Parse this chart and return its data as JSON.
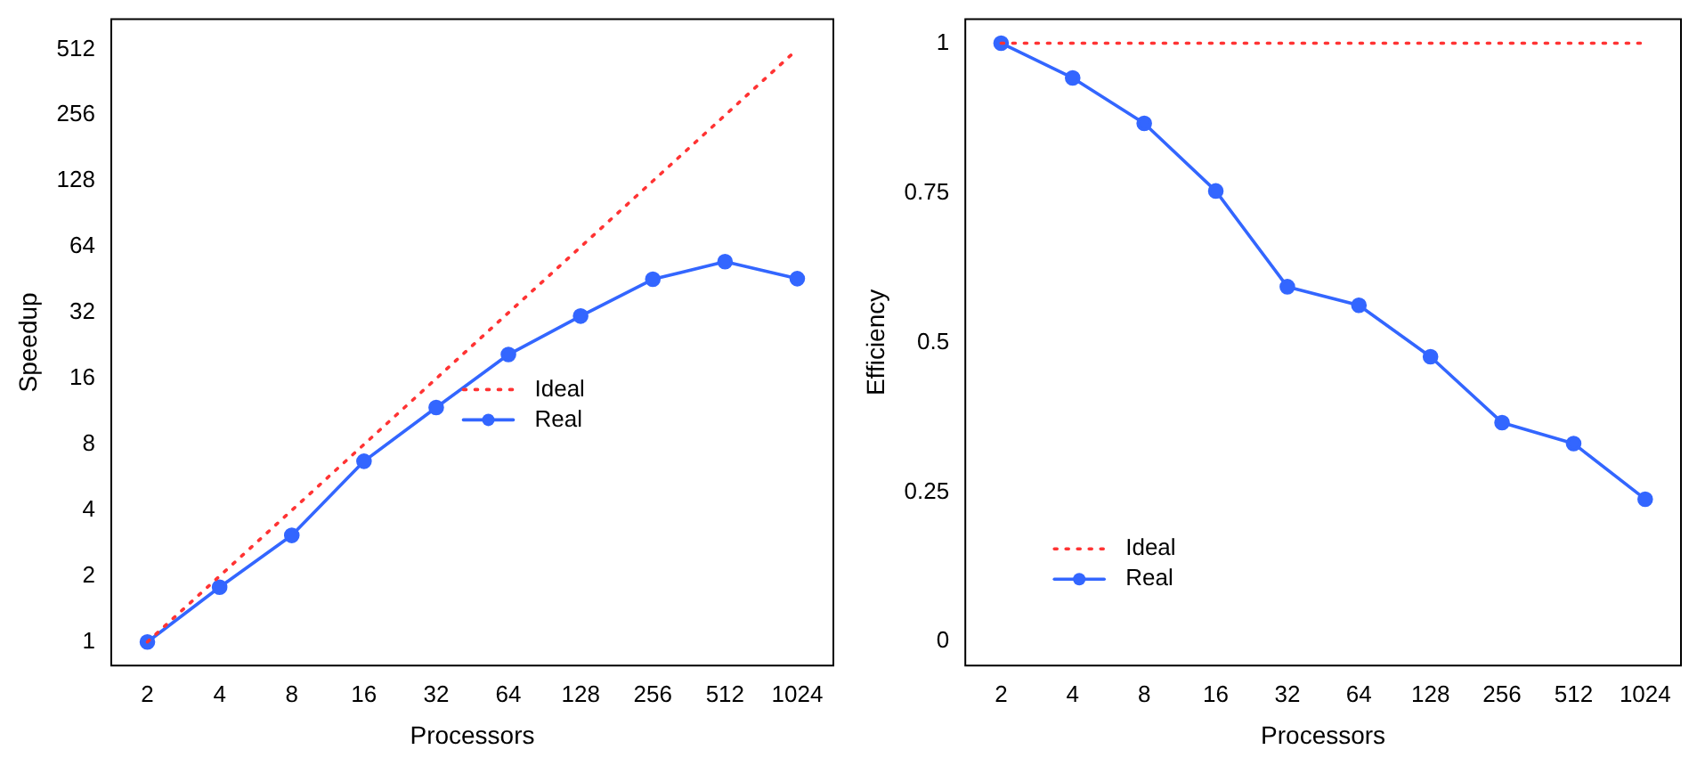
{
  "chart_data": [
    {
      "type": "line",
      "xlabel": "Processors",
      "ylabel": "Speedup",
      "categories": [
        "2",
        "4",
        "8",
        "16",
        "32",
        "64",
        "128",
        "256",
        "512",
        "1024"
      ],
      "log": "y",
      "ylim": [
        0.78,
        703
      ],
      "yticks": [
        1,
        2,
        4,
        8,
        16,
        32,
        64,
        128,
        256,
        512
      ],
      "legend": "center",
      "series": [
        {
          "name": "Ideal",
          "color": "#ff3333",
          "line_style": "dotted",
          "marker": "none",
          "values": [
            1,
            2,
            4,
            8,
            16,
            32,
            64,
            128,
            256,
            512
          ]
        },
        {
          "name": "Real",
          "color": "#3366ff",
          "line_style": "solid",
          "marker": "circle",
          "values": [
            1,
            1.78,
            3.07,
            6.7,
            11.8,
            20.6,
            30.9,
            45.5,
            54.8,
            45.8
          ]
        }
      ]
    },
    {
      "type": "line",
      "xlabel": "Processors",
      "ylabel": "Efficiency",
      "categories": [
        "2",
        "4",
        "8",
        "16",
        "32",
        "64",
        "128",
        "256",
        "512",
        "1024"
      ],
      "ylim": [
        -0.04,
        1.04
      ],
      "yticks": [
        0,
        0.25,
        0.5,
        0.75,
        1
      ],
      "legend": "bottom left",
      "series": [
        {
          "name": "Ideal",
          "color": "#ff3333",
          "line_style": "dotted",
          "marker": "none",
          "values": [
            1,
            1,
            1,
            1,
            1,
            1,
            1,
            1,
            1,
            1
          ]
        },
        {
          "name": "Real",
          "color": "#3366ff",
          "line_style": "solid",
          "marker": "circle",
          "values": [
            1,
            0.942,
            0.866,
            0.753,
            0.593,
            0.562,
            0.476,
            0.366,
            0.331,
            0.238
          ]
        }
      ]
    }
  ]
}
